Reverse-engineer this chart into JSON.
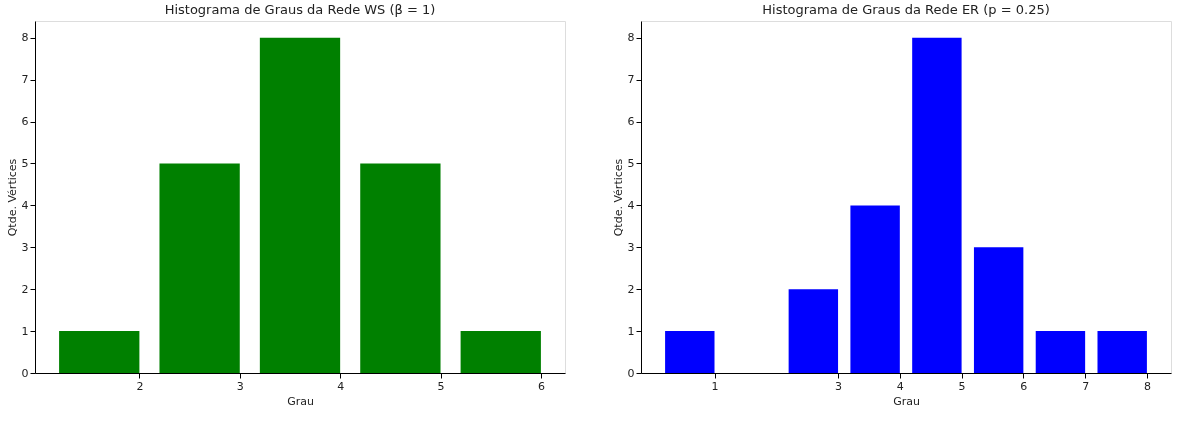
{
  "chart_data": [
    {
      "type": "bar",
      "title": "Histograma de Graus da Rede WS (β = 1)",
      "xlabel": "Grau",
      "ylabel": "Qtde. Vértices",
      "x": [
        1.6,
        2.6,
        3.6,
        4.6,
        5.6
      ],
      "series": [
        {
          "color": "#008000",
          "values": [
            1,
            5,
            8,
            5,
            1
          ]
        }
      ],
      "xlim": [
        0.96,
        6.24
      ],
      "xticks": [
        2,
        3,
        4,
        5,
        6
      ],
      "ylim": [
        0,
        8.4
      ],
      "yticks": [
        0,
        1,
        2,
        3,
        4,
        5,
        6,
        7,
        8
      ],
      "grid": false
    },
    {
      "type": "bar",
      "title": "Histograma de Graus da Rede ER (p = 0.25)",
      "xlabel": "Grau",
      "ylabel": "Qtde. Vértices",
      "x": [
        0.6,
        2.6,
        3.6,
        4.6,
        5.6,
        6.6,
        7.6
      ],
      "series": [
        {
          "color": "#0000ff",
          "values": [
            1,
            2,
            4,
            8,
            3,
            1,
            1
          ]
        }
      ],
      "xlim": [
        -0.19,
        8.39
      ],
      "xticks": [
        1,
        3,
        4,
        5,
        6,
        7,
        8
      ],
      "ylim": [
        0,
        8.4
      ],
      "yticks": [
        0,
        1,
        2,
        3,
        4,
        5,
        6,
        7,
        8
      ],
      "grid": false
    }
  ]
}
